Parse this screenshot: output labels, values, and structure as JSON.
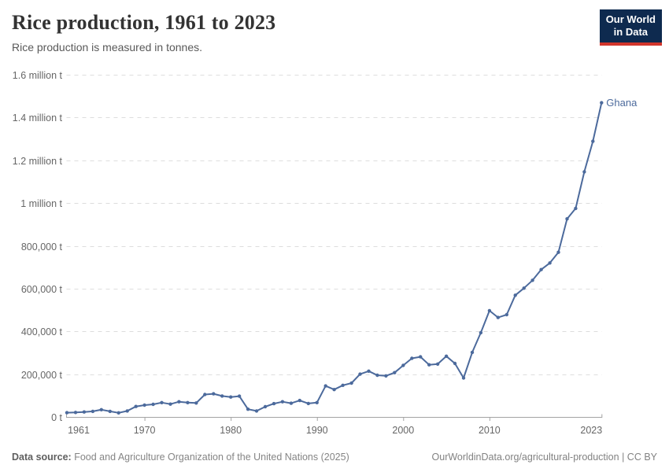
{
  "header": {
    "title": "Rice production, 1961 to 2023",
    "subtitle": "Rice production is measured in tonnes.",
    "logo": {
      "line1": "Our World",
      "line2": "in Data"
    }
  },
  "chart_data": {
    "type": "line",
    "title": "Rice production, 1961 to 2023",
    "ylabel": "tonnes",
    "xlabel": "",
    "x": [
      1961,
      1962,
      1963,
      1964,
      1965,
      1966,
      1967,
      1968,
      1969,
      1970,
      1971,
      1972,
      1973,
      1974,
      1975,
      1976,
      1977,
      1978,
      1979,
      1980,
      1981,
      1982,
      1983,
      1984,
      1985,
      1986,
      1987,
      1988,
      1989,
      1990,
      1991,
      1992,
      1993,
      1994,
      1995,
      1996,
      1997,
      1998,
      1999,
      2000,
      2001,
      2002,
      2003,
      2004,
      2005,
      2006,
      2007,
      2008,
      2009,
      2010,
      2011,
      2012,
      2013,
      2014,
      2015,
      2016,
      2017,
      2018,
      2019,
      2020,
      2021,
      2022,
      2023
    ],
    "series": [
      {
        "name": "Ghana",
        "values": [
          20000,
          21000,
          23000,
          26000,
          34000,
          26000,
          19000,
          28000,
          49000,
          55000,
          59000,
          67000,
          60000,
          71000,
          67000,
          65000,
          105000,
          108000,
          98000,
          93000,
          97000,
          36000,
          28000,
          48000,
          62000,
          71000,
          64000,
          77000,
          63000,
          67000,
          145000,
          128000,
          148000,
          158000,
          200000,
          214000,
          195000,
          192000,
          207000,
          241000,
          274000,
          281000,
          244000,
          247000,
          284000,
          250000,
          182000,
          302000,
          394000,
          497000,
          465000,
          478000,
          569000,
          602000,
          639000,
          689000,
          720000,
          770000,
          926000,
          975000,
          1146000,
          1289000,
          1469000
        ]
      }
    ],
    "end_label": "Ghana",
    "x_ticks": [
      1961,
      1970,
      1980,
      1990,
      2000,
      2010,
      2023
    ],
    "y_ticks": [
      0,
      200000,
      400000,
      600000,
      800000,
      1000000,
      1200000,
      1400000,
      1600000
    ],
    "y_tick_labels": [
      "0 t",
      "200,000 t",
      "400,000 t",
      "600,000 t",
      "800,000 t",
      "1 million t",
      "1.2 million t",
      "1.4 million t",
      "1.6 million t"
    ],
    "xlim": [
      1961,
      2023
    ],
    "ylim": [
      0,
      1600000
    ],
    "grid": "horizontal-dashed",
    "legend_position": "end-of-line"
  },
  "footer": {
    "source_label": "Data source:",
    "source_text": "Food and Agriculture Organization of the United Nations (2025)",
    "url": "OurWorldinData.org/agricultural-production",
    "separator": " | ",
    "license": "CC BY"
  },
  "colors": {
    "line": "#4c6a9c",
    "gridline": "#dddddd",
    "axis": "#a3a3a3",
    "tick_label": "#666666",
    "logo_bg": "#0e2a4f",
    "logo_stripe": "#d1352b"
  }
}
